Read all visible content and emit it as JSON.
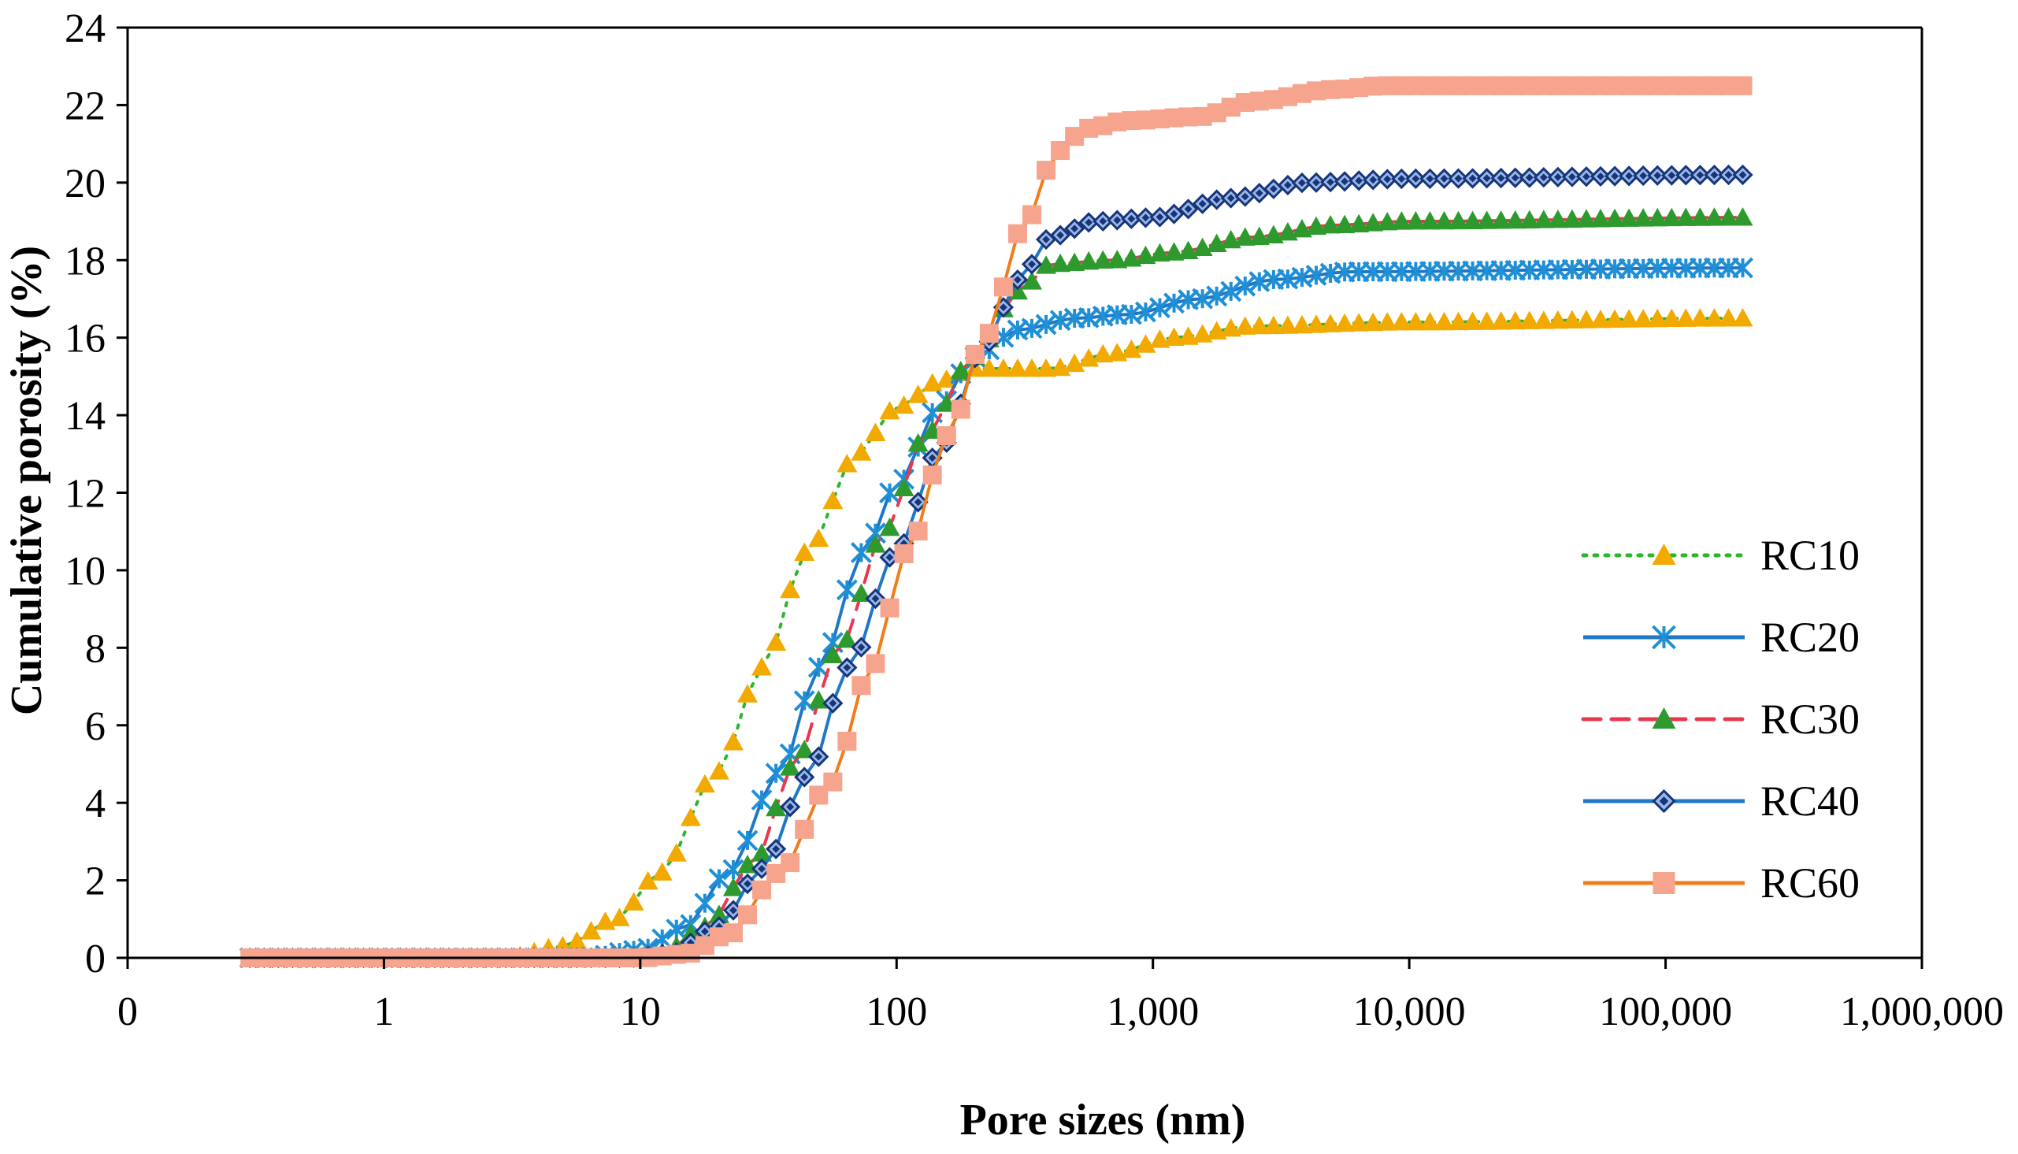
{
  "chart_data": {
    "type": "line",
    "title": "",
    "xlabel": "Pore sizes (nm)",
    "ylabel": "Cumulative porosity (%)",
    "xscale": "log",
    "xlim": [
      0.1,
      1000000
    ],
    "ylim": [
      0,
      24
    ],
    "x_tick_labels": [
      "0",
      "1",
      "10",
      "100",
      "1,000",
      "10,000",
      "100,000",
      "1,000,000"
    ],
    "y_tick_labels": [
      "0",
      "2",
      "4",
      "6",
      "8",
      "10",
      "12",
      "14",
      "16",
      "18",
      "20",
      "22",
      "24"
    ],
    "legend_position": "right",
    "x_start_nm": 0.3,
    "x_end_nm": 200000,
    "points_per_decade": 18,
    "series": [
      {
        "name": "RC10",
        "line_color": "#2db52d",
        "marker_color": "#f2a900",
        "line_style": "dotted",
        "marker": "triangle",
        "knots": [
          [
            0.3,
            0
          ],
          [
            3,
            0
          ],
          [
            5,
            0.3
          ],
          [
            8,
            1
          ],
          [
            12,
            2.2
          ],
          [
            20,
            4.8
          ],
          [
            30,
            7.5
          ],
          [
            45,
            10.5
          ],
          [
            70,
            13
          ],
          [
            100,
            14.2
          ],
          [
            150,
            14.9
          ],
          [
            200,
            15.2
          ],
          [
            400,
            15.2
          ],
          [
            700,
            15.6
          ],
          [
            1200,
            16
          ],
          [
            2500,
            16.3
          ],
          [
            10000,
            16.4
          ],
          [
            200000,
            16.5
          ]
        ]
      },
      {
        "name": "RC20",
        "line_color": "#1f77c8",
        "marker_color": "#1f8fd6",
        "line_style": "solid",
        "marker": "asterisk",
        "knots": [
          [
            0.3,
            0
          ],
          [
            6,
            0
          ],
          [
            10,
            0.2
          ],
          [
            15,
            0.8
          ],
          [
            22,
            2.2
          ],
          [
            35,
            4.8
          ],
          [
            50,
            7.5
          ],
          [
            75,
            10.5
          ],
          [
            100,
            12.2
          ],
          [
            150,
            14.3
          ],
          [
            200,
            15.5
          ],
          [
            300,
            16.2
          ],
          [
            500,
            16.5
          ],
          [
            800,
            16.6
          ],
          [
            1500,
            17
          ],
          [
            3000,
            17.5
          ],
          [
            6000,
            17.7
          ],
          [
            200000,
            17.8
          ]
        ]
      },
      {
        "name": "RC30",
        "line_color": "#e8384f",
        "marker_color": "#2e9a2e",
        "line_style": "dashed",
        "marker": "triangle",
        "knots": [
          [
            0.3,
            0
          ],
          [
            8,
            0
          ],
          [
            12,
            0.1
          ],
          [
            18,
            0.8
          ],
          [
            28,
            2.5
          ],
          [
            40,
            5
          ],
          [
            60,
            8
          ],
          [
            90,
            11
          ],
          [
            130,
            13.5
          ],
          [
            200,
            15.5
          ],
          [
            300,
            17.2
          ],
          [
            400,
            17.9
          ],
          [
            700,
            18
          ],
          [
            1200,
            18.2
          ],
          [
            2500,
            18.6
          ],
          [
            5000,
            18.9
          ],
          [
            10000,
            19
          ],
          [
            200000,
            19.1
          ]
        ]
      },
      {
        "name": "RC40",
        "line_color": "#1f77c8",
        "marker_color": "#16357a",
        "marker_fill": "#9cb8e6",
        "line_style": "solid",
        "marker": "diamond",
        "knots": [
          [
            0.3,
            0
          ],
          [
            9,
            0
          ],
          [
            13,
            0.1
          ],
          [
            20,
            0.8
          ],
          [
            30,
            2.3
          ],
          [
            45,
            4.7
          ],
          [
            65,
            7.5
          ],
          [
            100,
            10.5
          ],
          [
            150,
            13.2
          ],
          [
            220,
            15.8
          ],
          [
            300,
            17.5
          ],
          [
            400,
            18.6
          ],
          [
            600,
            19
          ],
          [
            1000,
            19.1
          ],
          [
            2000,
            19.6
          ],
          [
            4000,
            20
          ],
          [
            10000,
            20.1
          ],
          [
            200000,
            20.2
          ]
        ]
      },
      {
        "name": "RC60",
        "line_color": "#f07d1a",
        "marker_color": "#f6a48e",
        "line_style": "solid",
        "marker": "square",
        "knots": [
          [
            0.3,
            0
          ],
          [
            10,
            0
          ],
          [
            15,
            0.1
          ],
          [
            22,
            0.6
          ],
          [
            35,
            2.2
          ],
          [
            55,
            4.5
          ],
          [
            80,
            7.5
          ],
          [
            110,
            10.5
          ],
          [
            160,
            13.5
          ],
          [
            220,
            16
          ],
          [
            320,
            19
          ],
          [
            420,
            20.8
          ],
          [
            550,
            21.4
          ],
          [
            800,
            21.6
          ],
          [
            1500,
            21.7
          ],
          [
            2500,
            22.1
          ],
          [
            5000,
            22.4
          ],
          [
            8000,
            22.5
          ],
          [
            200000,
            22.5
          ]
        ]
      }
    ]
  }
}
